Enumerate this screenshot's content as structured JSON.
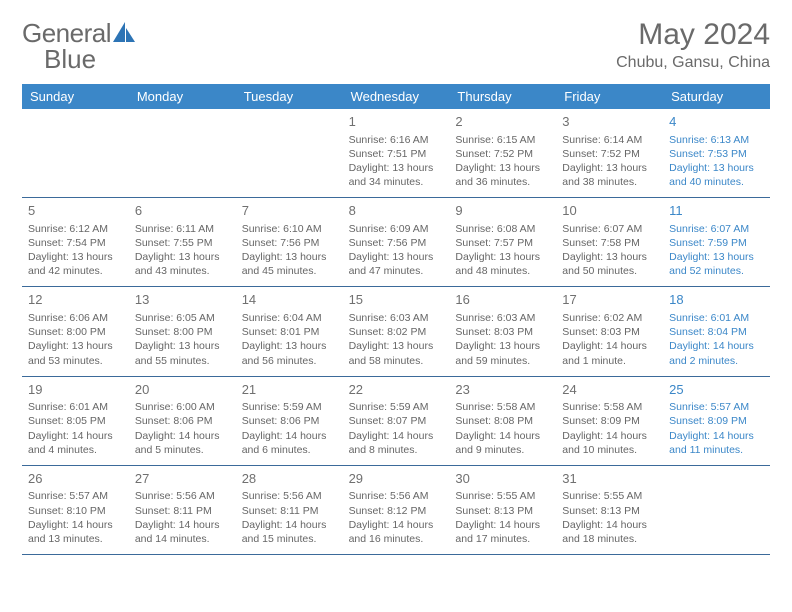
{
  "brand": {
    "name_a": "General",
    "name_b": "Blue"
  },
  "title": "May 2024",
  "location": "Chubu, Gansu, China",
  "colors": {
    "header_bg": "#3b87c8",
    "header_text": "#ffffff",
    "body_text": "#666666",
    "saturday_text": "#3b87c8",
    "rule": "#3b6a9a",
    "logo_gray": "#6a6a6a",
    "logo_blue": "#2d74b5"
  },
  "weekdays": [
    "Sunday",
    "Monday",
    "Tuesday",
    "Wednesday",
    "Thursday",
    "Friday",
    "Saturday"
  ],
  "labels": {
    "sunrise": "Sunrise:",
    "sunset": "Sunset:",
    "daylight": "Daylight:"
  },
  "weeks": [
    [
      null,
      null,
      null,
      {
        "n": "1",
        "sunrise": "6:16 AM",
        "sunset": "7:51 PM",
        "daylight": "13 hours and 34 minutes."
      },
      {
        "n": "2",
        "sunrise": "6:15 AM",
        "sunset": "7:52 PM",
        "daylight": "13 hours and 36 minutes."
      },
      {
        "n": "3",
        "sunrise": "6:14 AM",
        "sunset": "7:52 PM",
        "daylight": "13 hours and 38 minutes."
      },
      {
        "n": "4",
        "sunrise": "6:13 AM",
        "sunset": "7:53 PM",
        "daylight": "13 hours and 40 minutes."
      }
    ],
    [
      {
        "n": "5",
        "sunrise": "6:12 AM",
        "sunset": "7:54 PM",
        "daylight": "13 hours and 42 minutes."
      },
      {
        "n": "6",
        "sunrise": "6:11 AM",
        "sunset": "7:55 PM",
        "daylight": "13 hours and 43 minutes."
      },
      {
        "n": "7",
        "sunrise": "6:10 AM",
        "sunset": "7:56 PM",
        "daylight": "13 hours and 45 minutes."
      },
      {
        "n": "8",
        "sunrise": "6:09 AM",
        "sunset": "7:56 PM",
        "daylight": "13 hours and 47 minutes."
      },
      {
        "n": "9",
        "sunrise": "6:08 AM",
        "sunset": "7:57 PM",
        "daylight": "13 hours and 48 minutes."
      },
      {
        "n": "10",
        "sunrise": "6:07 AM",
        "sunset": "7:58 PM",
        "daylight": "13 hours and 50 minutes."
      },
      {
        "n": "11",
        "sunrise": "6:07 AM",
        "sunset": "7:59 PM",
        "daylight": "13 hours and 52 minutes."
      }
    ],
    [
      {
        "n": "12",
        "sunrise": "6:06 AM",
        "sunset": "8:00 PM",
        "daylight": "13 hours and 53 minutes."
      },
      {
        "n": "13",
        "sunrise": "6:05 AM",
        "sunset": "8:00 PM",
        "daylight": "13 hours and 55 minutes."
      },
      {
        "n": "14",
        "sunrise": "6:04 AM",
        "sunset": "8:01 PM",
        "daylight": "13 hours and 56 minutes."
      },
      {
        "n": "15",
        "sunrise": "6:03 AM",
        "sunset": "8:02 PM",
        "daylight": "13 hours and 58 minutes."
      },
      {
        "n": "16",
        "sunrise": "6:03 AM",
        "sunset": "8:03 PM",
        "daylight": "13 hours and 59 minutes."
      },
      {
        "n": "17",
        "sunrise": "6:02 AM",
        "sunset": "8:03 PM",
        "daylight": "14 hours and 1 minute."
      },
      {
        "n": "18",
        "sunrise": "6:01 AM",
        "sunset": "8:04 PM",
        "daylight": "14 hours and 2 minutes."
      }
    ],
    [
      {
        "n": "19",
        "sunrise": "6:01 AM",
        "sunset": "8:05 PM",
        "daylight": "14 hours and 4 minutes."
      },
      {
        "n": "20",
        "sunrise": "6:00 AM",
        "sunset": "8:06 PM",
        "daylight": "14 hours and 5 minutes."
      },
      {
        "n": "21",
        "sunrise": "5:59 AM",
        "sunset": "8:06 PM",
        "daylight": "14 hours and 6 minutes."
      },
      {
        "n": "22",
        "sunrise": "5:59 AM",
        "sunset": "8:07 PM",
        "daylight": "14 hours and 8 minutes."
      },
      {
        "n": "23",
        "sunrise": "5:58 AM",
        "sunset": "8:08 PM",
        "daylight": "14 hours and 9 minutes."
      },
      {
        "n": "24",
        "sunrise": "5:58 AM",
        "sunset": "8:09 PM",
        "daylight": "14 hours and 10 minutes."
      },
      {
        "n": "25",
        "sunrise": "5:57 AM",
        "sunset": "8:09 PM",
        "daylight": "14 hours and 11 minutes."
      }
    ],
    [
      {
        "n": "26",
        "sunrise": "5:57 AM",
        "sunset": "8:10 PM",
        "daylight": "14 hours and 13 minutes."
      },
      {
        "n": "27",
        "sunrise": "5:56 AM",
        "sunset": "8:11 PM",
        "daylight": "14 hours and 14 minutes."
      },
      {
        "n": "28",
        "sunrise": "5:56 AM",
        "sunset": "8:11 PM",
        "daylight": "14 hours and 15 minutes."
      },
      {
        "n": "29",
        "sunrise": "5:56 AM",
        "sunset": "8:12 PM",
        "daylight": "14 hours and 16 minutes."
      },
      {
        "n": "30",
        "sunrise": "5:55 AM",
        "sunset": "8:13 PM",
        "daylight": "14 hours and 17 minutes."
      },
      {
        "n": "31",
        "sunrise": "5:55 AM",
        "sunset": "8:13 PM",
        "daylight": "14 hours and 18 minutes."
      },
      null
    ]
  ]
}
